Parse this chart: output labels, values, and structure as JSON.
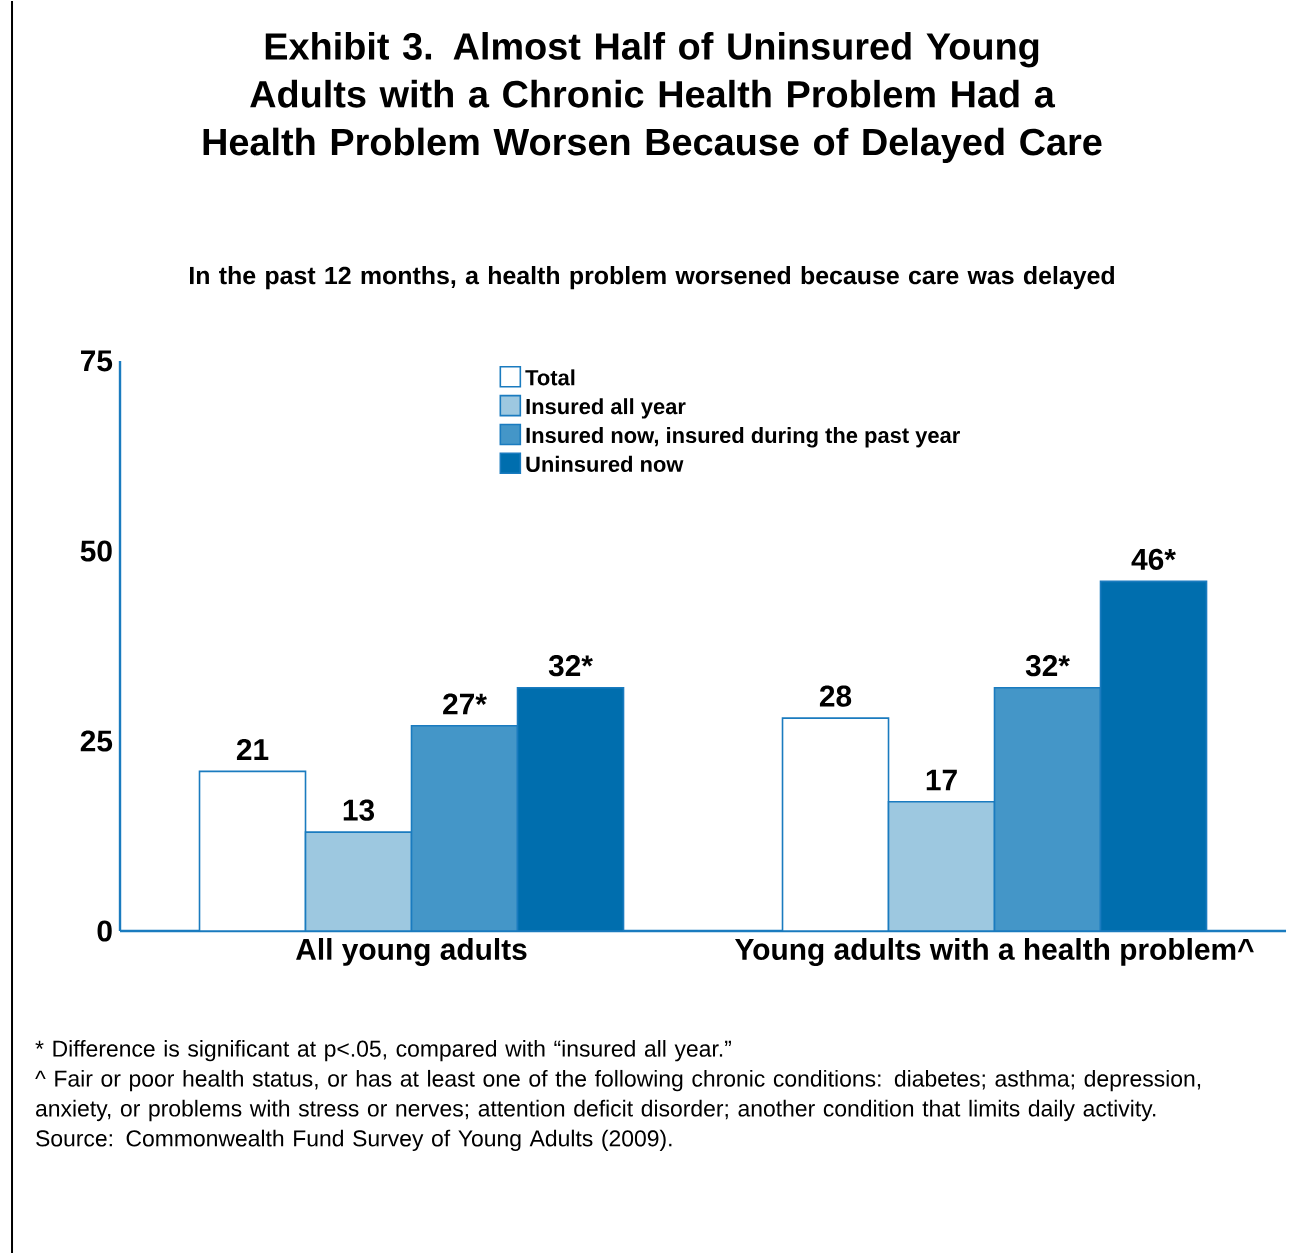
{
  "chart_data": {
    "type": "bar",
    "title": "Exhibit 3. Almost Half of Uninsured Young Adults with a Chronic Health Problem Had a Health Problem Worsen Because of Delayed Care",
    "subtitle": "In the past 12 months, a health problem worsened because care was delayed",
    "categories": [
      "All young adults",
      "Young adults with a health problem^"
    ],
    "series": [
      {
        "name": "Total",
        "color": "#ffffff",
        "values": [
          21,
          28
        ],
        "value_labels": [
          "21",
          "28"
        ]
      },
      {
        "name": "Insured all year",
        "color": "#9dc8e0",
        "values": [
          13,
          17
        ],
        "value_labels": [
          "13",
          "17"
        ]
      },
      {
        "name": "Insured now, insured during the past year",
        "color": "#4496c8",
        "values": [
          27,
          32
        ],
        "value_labels": [
          "27*",
          "32*"
        ]
      },
      {
        "name": "Uninsured now",
        "color": "#006eae",
        "values": [
          32,
          46
        ],
        "value_labels": [
          "32*",
          "46*"
        ]
      }
    ],
    "ylim": [
      0,
      75
    ],
    "yticks": [
      0,
      25,
      50,
      75
    ],
    "grid": false,
    "legend": "top",
    "annotations": [
      "* Difference is significant at p<.05, compared with “insured all year.”",
      "^ Fair or poor health status, or has at least one of the following chronic conditions: diabetes; asthma; depression, anxiety, or problems with stress or nerves; attention deficit disorder; another condition that limits daily activity.",
      "Source: Commonwealth Fund Survey of Young Adults (2009)."
    ]
  }
}
